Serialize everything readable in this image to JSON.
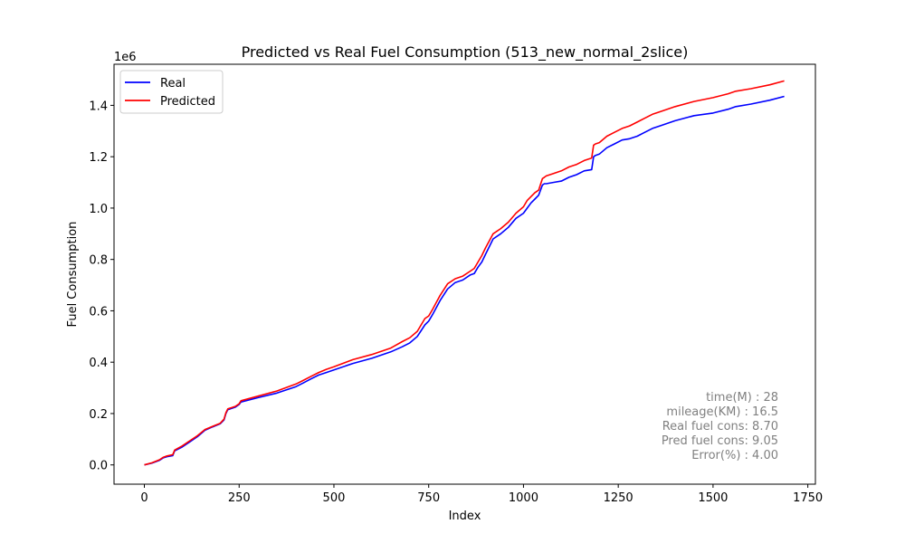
{
  "chart_data": {
    "type": "line",
    "title": "Predicted vs Real Fuel Consumption (513_new_normal_2slice)",
    "xlabel": "Index",
    "ylabel": "Fuel Consumption",
    "y_offset_label": "1e6",
    "xlim": [
      -80,
      1770
    ],
    "ylim": [
      -0.075,
      1.56
    ],
    "y_scale_note": "values in units of 1e6",
    "xticks": [
      0,
      250,
      500,
      750,
      1000,
      1250,
      1500,
      1750
    ],
    "xtick_labels": [
      "0",
      "250",
      "500",
      "750",
      "1000",
      "1250",
      "1500",
      "1750"
    ],
    "yticks": [
      0.0,
      0.2,
      0.4,
      0.6,
      0.8,
      1.0,
      1.2,
      1.4
    ],
    "ytick_labels": [
      "0.0",
      "0.2",
      "0.4",
      "0.6",
      "0.8",
      "1.0",
      "1.2",
      "1.4"
    ],
    "grid": false,
    "legend_position": "top-left",
    "series": [
      {
        "name": "Real",
        "color": "#0000ff",
        "x": [
          0,
          20,
          40,
          50,
          60,
          75,
          80,
          100,
          120,
          140,
          160,
          180,
          200,
          210,
          215,
          220,
          240,
          250,
          255,
          300,
          350,
          400,
          420,
          440,
          460,
          480,
          500,
          550,
          600,
          650,
          680,
          700,
          720,
          740,
          750,
          760,
          780,
          800,
          820,
          840,
          860,
          870,
          880,
          890,
          900,
          920,
          940,
          960,
          980,
          1000,
          1010,
          1020,
          1030,
          1040,
          1050,
          1055,
          1060,
          1080,
          1100,
          1120,
          1140,
          1160,
          1180,
          1185,
          1190,
          1200,
          1220,
          1240,
          1260,
          1280,
          1300,
          1320,
          1340,
          1360,
          1400,
          1450,
          1500,
          1540,
          1560,
          1600,
          1650,
          1688
        ],
        "values": [
          0.0,
          0.007,
          0.018,
          0.028,
          0.032,
          0.036,
          0.055,
          0.07,
          0.09,
          0.11,
          0.135,
          0.148,
          0.16,
          0.175,
          0.2,
          0.215,
          0.225,
          0.235,
          0.245,
          0.262,
          0.28,
          0.305,
          0.32,
          0.335,
          0.35,
          0.36,
          0.37,
          0.395,
          0.415,
          0.44,
          0.46,
          0.475,
          0.5,
          0.545,
          0.56,
          0.585,
          0.64,
          0.685,
          0.71,
          0.72,
          0.74,
          0.745,
          0.77,
          0.79,
          0.82,
          0.88,
          0.9,
          0.925,
          0.96,
          0.98,
          1.0,
          1.02,
          1.035,
          1.05,
          1.09,
          1.095,
          1.095,
          1.1,
          1.105,
          1.12,
          1.13,
          1.145,
          1.15,
          1.2,
          1.205,
          1.21,
          1.235,
          1.25,
          1.265,
          1.27,
          1.28,
          1.295,
          1.31,
          1.32,
          1.34,
          1.36,
          1.37,
          1.385,
          1.395,
          1.405,
          1.42,
          1.435
        ]
      },
      {
        "name": "Predicted",
        "color": "#ff0000",
        "x": [
          0,
          20,
          40,
          50,
          60,
          75,
          80,
          100,
          120,
          140,
          160,
          180,
          200,
          210,
          215,
          220,
          240,
          250,
          255,
          300,
          350,
          400,
          420,
          440,
          460,
          480,
          500,
          550,
          600,
          650,
          680,
          700,
          720,
          740,
          750,
          760,
          780,
          800,
          820,
          840,
          860,
          870,
          880,
          890,
          900,
          920,
          940,
          960,
          980,
          1000,
          1010,
          1020,
          1030,
          1040,
          1050,
          1055,
          1060,
          1080,
          1100,
          1120,
          1140,
          1160,
          1180,
          1185,
          1190,
          1200,
          1220,
          1240,
          1260,
          1280,
          1300,
          1320,
          1340,
          1360,
          1400,
          1450,
          1500,
          1540,
          1560,
          1600,
          1650,
          1688
        ],
        "values": [
          0.0,
          0.008,
          0.02,
          0.03,
          0.035,
          0.04,
          0.058,
          0.074,
          0.094,
          0.114,
          0.138,
          0.15,
          0.162,
          0.178,
          0.203,
          0.218,
          0.228,
          0.238,
          0.25,
          0.268,
          0.288,
          0.315,
          0.33,
          0.345,
          0.36,
          0.372,
          0.382,
          0.41,
          0.43,
          0.455,
          0.48,
          0.495,
          0.52,
          0.57,
          0.58,
          0.605,
          0.66,
          0.705,
          0.725,
          0.735,
          0.755,
          0.765,
          0.79,
          0.815,
          0.845,
          0.9,
          0.92,
          0.945,
          0.98,
          1.005,
          1.03,
          1.045,
          1.06,
          1.07,
          1.115,
          1.12,
          1.125,
          1.135,
          1.145,
          1.16,
          1.17,
          1.185,
          1.195,
          1.245,
          1.25,
          1.255,
          1.28,
          1.295,
          1.31,
          1.32,
          1.335,
          1.35,
          1.365,
          1.375,
          1.395,
          1.415,
          1.43,
          1.445,
          1.455,
          1.465,
          1.48,
          1.495
        ]
      }
    ],
    "annotations": [
      "time(M) : 28",
      "mileage(KM) : 16.5",
      "Real fuel cons: 8.70",
      "Pred fuel cons: 9.05",
      "Error(%) : 4.00"
    ]
  }
}
